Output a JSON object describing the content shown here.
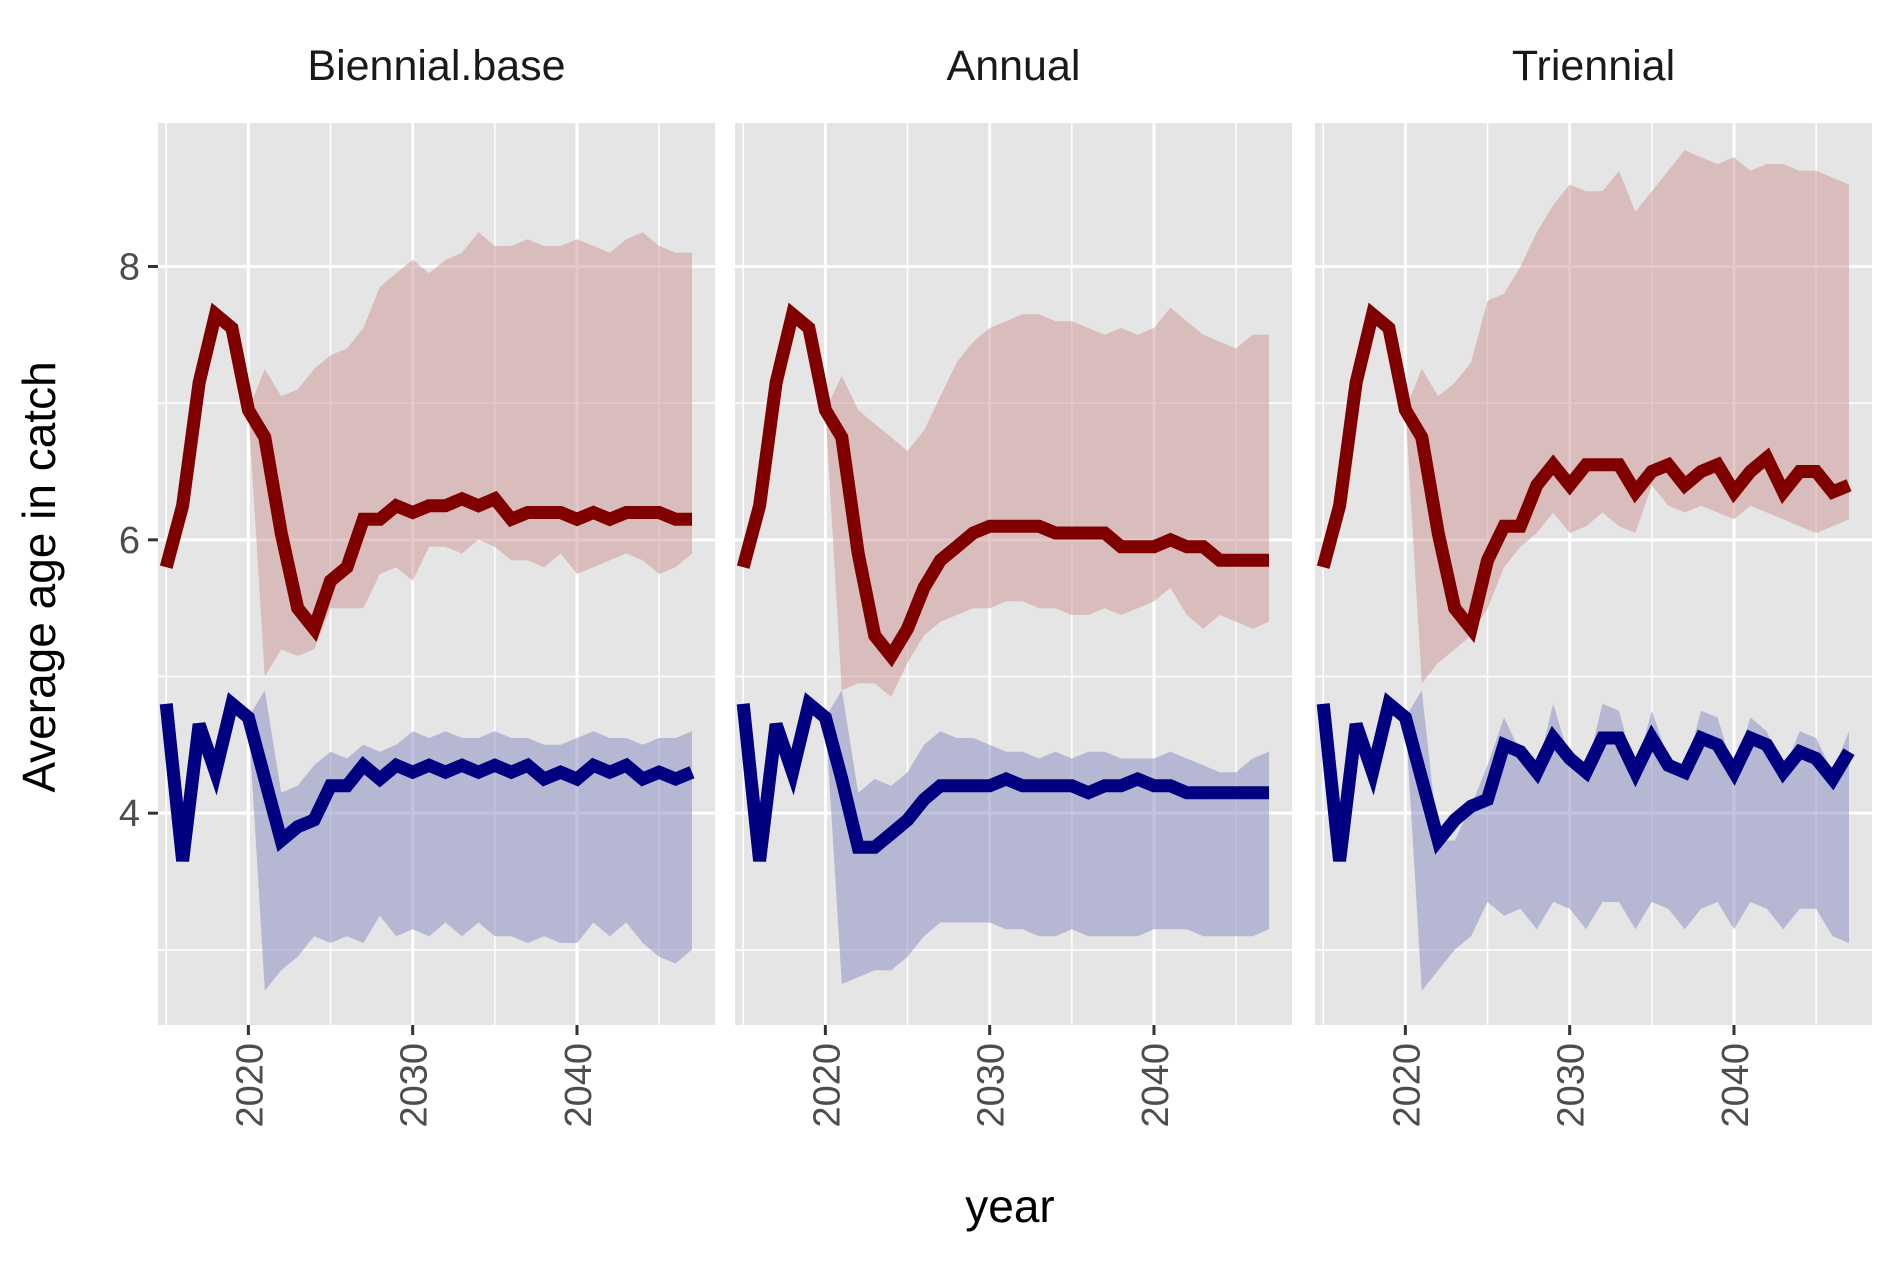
{
  "chart_data": {
    "type": "line",
    "layout": "faceted",
    "xlabel": "year",
    "ylabel": "Average age in catch",
    "xlim": [
      2014.5,
      2048.4
    ],
    "ylim": [
      2.45,
      9.05
    ],
    "xticks": [
      2020,
      2030,
      2040
    ],
    "yticks": [
      4,
      6,
      8
    ],
    "grid": true,
    "legend": "none",
    "colors": {
      "red_line": "#800000",
      "blue_line": "#000080",
      "red_band": "#d09a9a",
      "blue_band": "#8f92c4",
      "panel_bg": "#e5e5e5",
      "grid": "#ffffff",
      "strip_text": "#1a1a1a",
      "axis_text": "#4d4d4d"
    },
    "panels": [
      {
        "title": "Biennial.base",
        "x": [
          2015,
          2016,
          2017,
          2018,
          2019,
          2020,
          2021,
          2022,
          2023,
          2024,
          2025,
          2026,
          2027,
          2028,
          2029,
          2030,
          2031,
          2032,
          2033,
          2034,
          2035,
          2036,
          2037,
          2038,
          2039,
          2040,
          2041,
          2042,
          2043,
          2044,
          2045,
          2046,
          2047
        ],
        "series": [
          {
            "color": "red",
            "values": [
              5.8,
              6.25,
              7.15,
              7.65,
              7.55,
              6.95,
              6.75,
              6.05,
              5.5,
              5.35,
              5.7,
              5.8,
              6.15,
              6.15,
              6.25,
              6.2,
              6.25,
              6.25,
              6.3,
              6.25,
              6.3,
              6.15,
              6.2,
              6.2,
              6.2,
              6.15,
              6.2,
              6.15,
              6.2,
              6.2,
              6.2,
              6.15,
              6.15
            ],
            "lower": [
              5.8,
              6.25,
              7.15,
              7.65,
              7.55,
              6.95,
              5.0,
              5.2,
              5.15,
              5.2,
              5.5,
              5.5,
              5.5,
              5.75,
              5.8,
              5.7,
              5.95,
              5.95,
              5.9,
              6.0,
              5.95,
              5.85,
              5.85,
              5.8,
              5.9,
              5.75,
              5.8,
              5.85,
              5.9,
              5.85,
              5.75,
              5.8,
              5.9
            ],
            "upper": [
              5.8,
              6.25,
              7.15,
              7.65,
              7.55,
              6.95,
              7.25,
              7.05,
              7.1,
              7.25,
              7.35,
              7.4,
              7.55,
              7.85,
              7.95,
              8.05,
              7.95,
              8.05,
              8.1,
              8.25,
              8.15,
              8.15,
              8.2,
              8.15,
              8.15,
              8.2,
              8.15,
              8.1,
              8.2,
              8.25,
              8.15,
              8.1,
              8.1
            ]
          },
          {
            "color": "blue",
            "values": [
              4.8,
              3.65,
              4.65,
              4.3,
              4.8,
              4.7,
              4.25,
              3.8,
              3.9,
              3.95,
              4.2,
              4.2,
              4.35,
              4.25,
              4.35,
              4.3,
              4.35,
              4.3,
              4.35,
              4.3,
              4.35,
              4.3,
              4.35,
              4.25,
              4.3,
              4.25,
              4.35,
              4.3,
              4.35,
              4.25,
              4.3,
              4.25,
              4.3
            ],
            "lower": [
              4.8,
              3.65,
              4.65,
              4.3,
              4.8,
              4.7,
              2.7,
              2.85,
              2.95,
              3.1,
              3.05,
              3.1,
              3.05,
              3.25,
              3.1,
              3.15,
              3.1,
              3.2,
              3.1,
              3.2,
              3.1,
              3.1,
              3.05,
              3.1,
              3.05,
              3.05,
              3.2,
              3.1,
              3.2,
              3.05,
              2.95,
              2.9,
              3.0
            ],
            "upper": [
              4.8,
              3.65,
              4.65,
              4.3,
              4.8,
              4.7,
              4.9,
              4.15,
              4.2,
              4.35,
              4.45,
              4.4,
              4.5,
              4.45,
              4.5,
              4.6,
              4.55,
              4.6,
              4.55,
              4.55,
              4.6,
              4.55,
              4.55,
              4.5,
              4.5,
              4.55,
              4.6,
              4.55,
              4.55,
              4.5,
              4.55,
              4.55,
              4.6
            ]
          }
        ]
      },
      {
        "title": "Annual",
        "x": [
          2015,
          2016,
          2017,
          2018,
          2019,
          2020,
          2021,
          2022,
          2023,
          2024,
          2025,
          2026,
          2027,
          2028,
          2029,
          2030,
          2031,
          2032,
          2033,
          2034,
          2035,
          2036,
          2037,
          2038,
          2039,
          2040,
          2041,
          2042,
          2043,
          2044,
          2045,
          2046,
          2047
        ],
        "series": [
          {
            "color": "red",
            "values": [
              5.8,
              6.25,
              7.15,
              7.65,
              7.55,
              6.95,
              6.75,
              5.9,
              5.3,
              5.15,
              5.35,
              5.65,
              5.85,
              5.95,
              6.05,
              6.1,
              6.1,
              6.1,
              6.1,
              6.05,
              6.05,
              6.05,
              6.05,
              5.95,
              5.95,
              5.95,
              6.0,
              5.95,
              5.95,
              5.85,
              5.85,
              5.85,
              5.85
            ],
            "lower": [
              5.8,
              6.25,
              7.15,
              7.65,
              7.55,
              6.95,
              4.9,
              4.95,
              4.95,
              4.85,
              5.1,
              5.3,
              5.4,
              5.45,
              5.5,
              5.5,
              5.55,
              5.55,
              5.5,
              5.5,
              5.45,
              5.45,
              5.5,
              5.45,
              5.5,
              5.55,
              5.65,
              5.45,
              5.35,
              5.45,
              5.4,
              5.35,
              5.4
            ],
            "upper": [
              5.8,
              6.25,
              7.15,
              7.65,
              7.55,
              6.95,
              7.2,
              6.95,
              6.85,
              6.75,
              6.65,
              6.8,
              7.05,
              7.3,
              7.45,
              7.55,
              7.6,
              7.65,
              7.65,
              7.6,
              7.6,
              7.55,
              7.5,
              7.55,
              7.5,
              7.55,
              7.7,
              7.6,
              7.5,
              7.45,
              7.4,
              7.5,
              7.5
            ]
          },
          {
            "color": "blue",
            "values": [
              4.8,
              3.65,
              4.65,
              4.3,
              4.8,
              4.7,
              4.25,
              3.75,
              3.75,
              3.85,
              3.95,
              4.1,
              4.2,
              4.2,
              4.2,
              4.2,
              4.25,
              4.2,
              4.2,
              4.2,
              4.2,
              4.15,
              4.2,
              4.2,
              4.25,
              4.2,
              4.2,
              4.15,
              4.15,
              4.15,
              4.15,
              4.15,
              4.15
            ],
            "lower": [
              4.8,
              3.65,
              4.65,
              4.3,
              4.8,
              4.7,
              2.75,
              2.8,
              2.85,
              2.85,
              2.95,
              3.1,
              3.2,
              3.2,
              3.2,
              3.2,
              3.15,
              3.15,
              3.1,
              3.1,
              3.15,
              3.1,
              3.1,
              3.1,
              3.1,
              3.15,
              3.15,
              3.15,
              3.1,
              3.1,
              3.1,
              3.1,
              3.15
            ],
            "upper": [
              4.8,
              3.65,
              4.65,
              4.3,
              4.8,
              4.7,
              4.9,
              4.15,
              4.25,
              4.2,
              4.3,
              4.5,
              4.6,
              4.55,
              4.55,
              4.5,
              4.45,
              4.45,
              4.4,
              4.45,
              4.4,
              4.45,
              4.45,
              4.4,
              4.4,
              4.4,
              4.45,
              4.4,
              4.35,
              4.3,
              4.3,
              4.4,
              4.45
            ]
          }
        ]
      },
      {
        "title": "Triennial",
        "x": [
          2015,
          2016,
          2017,
          2018,
          2019,
          2020,
          2021,
          2022,
          2023,
          2024,
          2025,
          2026,
          2027,
          2028,
          2029,
          2030,
          2031,
          2032,
          2033,
          2034,
          2035,
          2036,
          2037,
          2038,
          2039,
          2040,
          2041,
          2042,
          2043,
          2044,
          2045,
          2046,
          2047
        ],
        "series": [
          {
            "color": "red",
            "values": [
              5.8,
              6.25,
              7.15,
              7.65,
              7.55,
              6.95,
              6.75,
              6.05,
              5.5,
              5.35,
              5.85,
              6.1,
              6.1,
              6.4,
              6.55,
              6.4,
              6.55,
              6.55,
              6.55,
              6.35,
              6.5,
              6.55,
              6.4,
              6.5,
              6.55,
              6.35,
              6.5,
              6.6,
              6.35,
              6.5,
              6.5,
              6.35,
              6.4
            ],
            "lower": [
              5.8,
              6.25,
              7.15,
              7.65,
              7.55,
              6.95,
              4.95,
              5.1,
              5.2,
              5.3,
              5.5,
              5.8,
              5.95,
              6.05,
              6.2,
              6.05,
              6.1,
              6.2,
              6.1,
              6.05,
              6.4,
              6.25,
              6.2,
              6.25,
              6.2,
              6.15,
              6.25,
              6.2,
              6.15,
              6.1,
              6.05,
              6.1,
              6.15
            ],
            "upper": [
              5.8,
              6.25,
              7.15,
              7.65,
              7.55,
              6.95,
              7.25,
              7.05,
              7.15,
              7.3,
              7.75,
              7.8,
              8.0,
              8.25,
              8.45,
              8.6,
              8.55,
              8.55,
              8.7,
              8.4,
              8.55,
              8.7,
              8.85,
              8.8,
              8.75,
              8.8,
              8.7,
              8.75,
              8.75,
              8.7,
              8.7,
              8.65,
              8.6
            ]
          },
          {
            "color": "blue",
            "values": [
              4.8,
              3.65,
              4.65,
              4.3,
              4.8,
              4.7,
              4.25,
              3.8,
              3.95,
              4.05,
              4.1,
              4.5,
              4.45,
              4.3,
              4.55,
              4.4,
              4.3,
              4.55,
              4.55,
              4.3,
              4.55,
              4.35,
              4.3,
              4.55,
              4.5,
              4.3,
              4.55,
              4.5,
              4.3,
              4.45,
              4.4,
              4.25,
              4.45
            ],
            "lower": [
              4.8,
              3.65,
              4.65,
              4.3,
              4.8,
              4.7,
              2.7,
              2.85,
              3.0,
              3.1,
              3.35,
              3.25,
              3.3,
              3.15,
              3.35,
              3.3,
              3.15,
              3.35,
              3.35,
              3.15,
              3.35,
              3.3,
              3.15,
              3.3,
              3.35,
              3.15,
              3.35,
              3.3,
              3.15,
              3.3,
              3.3,
              3.1,
              3.05
            ],
            "upper": [
              4.8,
              3.65,
              4.65,
              4.3,
              4.8,
              4.7,
              4.9,
              3.8,
              3.8,
              4.05,
              4.35,
              4.7,
              4.45,
              4.3,
              4.8,
              4.4,
              4.3,
              4.8,
              4.75,
              4.3,
              4.75,
              4.4,
              4.3,
              4.75,
              4.7,
              4.3,
              4.7,
              4.6,
              4.3,
              4.6,
              4.55,
              4.3,
              4.6
            ]
          }
        ]
      }
    ]
  }
}
